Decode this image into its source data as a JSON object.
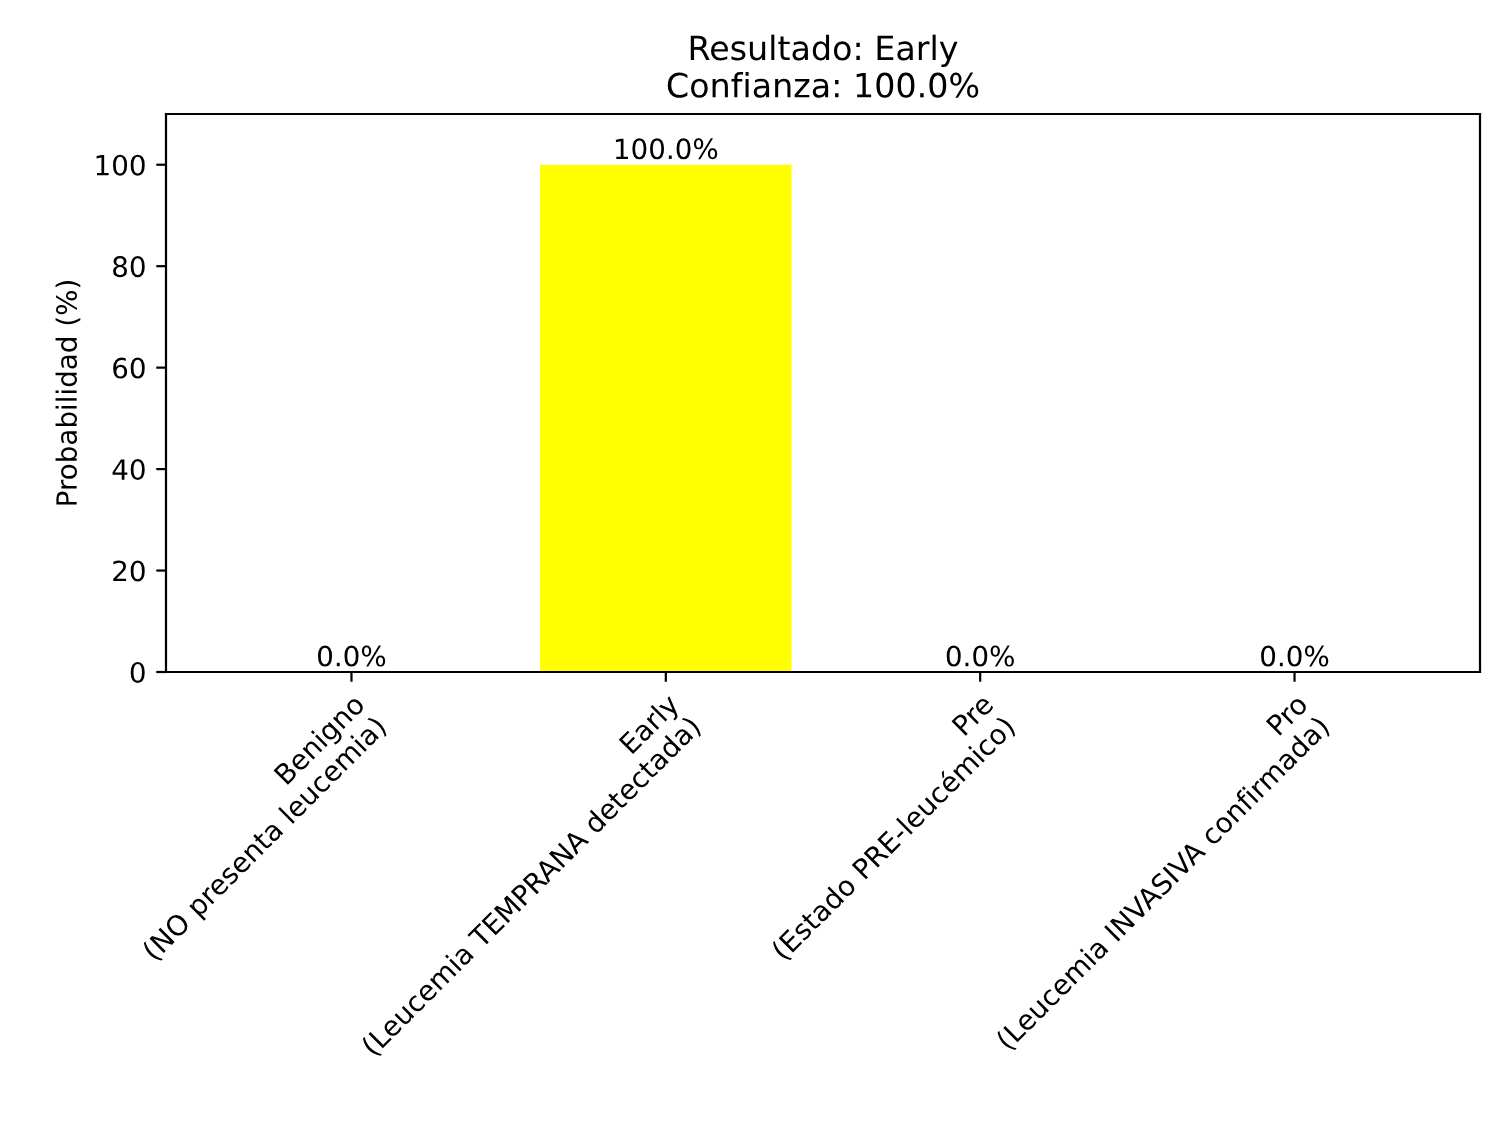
{
  "chart_data": {
    "type": "bar",
    "title": "Resultado: Early\nConfianza: 100.0%",
    "ylabel": "Probabilidad (%)",
    "categories": [
      "Benigno\n(NO presenta leucemia)",
      "Early\n(Leucemia TEMPRANA detectada)",
      "Pre\n(Estado PRE-leucémico)",
      "Pro\n(Leucemia INVASIVA confirmada)"
    ],
    "values": [
      0,
      100,
      0,
      0
    ],
    "value_labels": [
      "0.0%",
      "100.0%",
      "0.0%",
      "0.0%"
    ],
    "color": "#ffff00",
    "ylim": [
      0,
      110
    ],
    "yticks": [
      0,
      20,
      40,
      60,
      80,
      100
    ],
    "grid": false,
    "legend": false
  }
}
